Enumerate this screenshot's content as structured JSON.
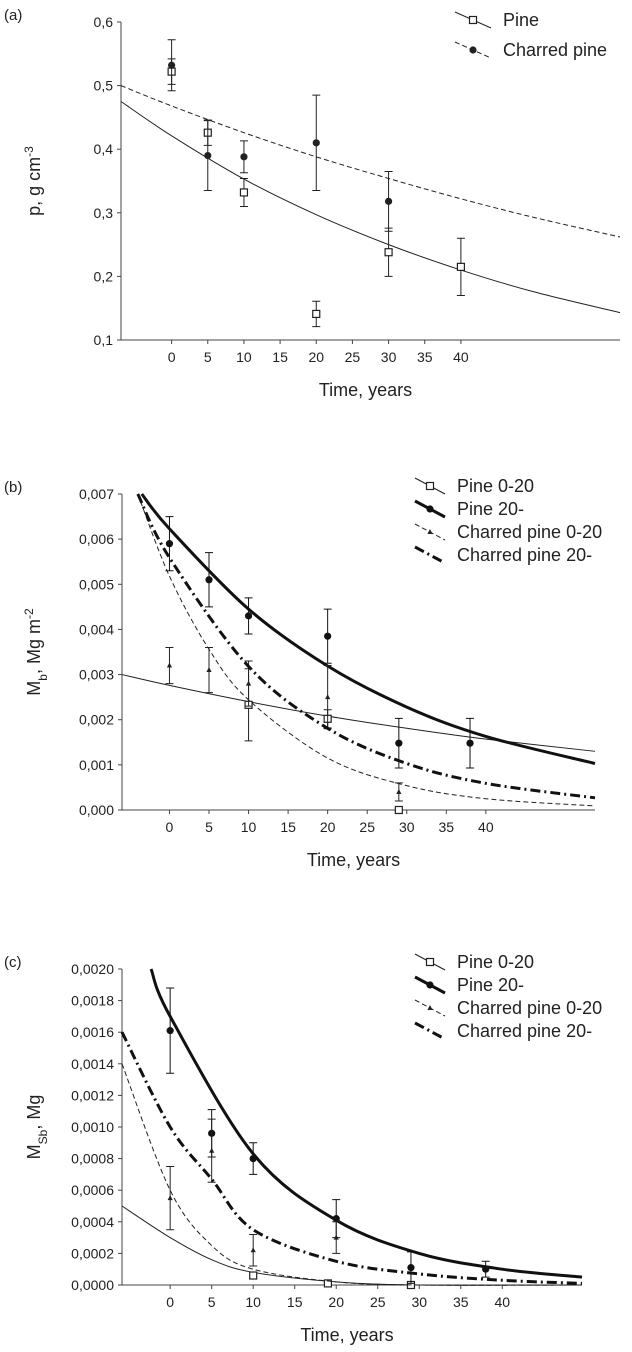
{
  "chart_data": [
    {
      "type": "scatter",
      "panel_label": "(a)",
      "xlabel": "Time, years",
      "ylabel_parts": [
        {
          "text": "p, g cm"
        },
        {
          "text": "-3",
          "sup": true
        }
      ],
      "xlim": [
        -7,
        62
      ],
      "xticks": [
        0,
        5,
        10,
        15,
        20,
        25,
        30,
        35,
        40
      ],
      "ylim": [
        0.1,
        0.6
      ],
      "yticks": [
        {
          "value": 0.1,
          "label": "0,1"
        },
        {
          "value": 0.2,
          "label": "0,2"
        },
        {
          "value": 0.3,
          "label": "0,3"
        },
        {
          "value": 0.4,
          "label": "0,4"
        },
        {
          "value": 0.5,
          "label": "0,5"
        },
        {
          "value": 0.6,
          "label": "0,6"
        }
      ],
      "series": [
        {
          "name": "Pine",
          "color": "#222222",
          "marker": "square",
          "dash": "solid",
          "line_width": 1,
          "x": [
            0,
            5,
            10,
            20,
            30,
            40
          ],
          "values": [
            0.522,
            0.426,
            0.332,
            0.141,
            0.238,
            0.215
          ],
          "errors": [
            0.02,
            0.02,
            0.022,
            0.02,
            0.038,
            0.045
          ],
          "fit": {
            "x": [
              -7,
              0,
              10,
              20,
              30,
              40,
              50,
              62
            ],
            "values": [
              0.475,
              0.421,
              0.353,
              0.297,
              0.25,
              0.21,
              0.176,
              0.143
            ]
          }
        },
        {
          "name": "Charred pine",
          "color": "#222222",
          "marker": "circle",
          "dash": "dashed",
          "line_width": 1,
          "x": [
            0,
            5,
            10,
            20,
            30
          ],
          "values": [
            0.532,
            0.39,
            0.388,
            0.41,
            0.318
          ],
          "errors": [
            0.04,
            0.055,
            0.025,
            0.075,
            0.047
          ],
          "fit": {
            "x": [
              -7,
              0,
              10,
              20,
              30,
              40,
              50,
              62
            ],
            "values": [
              0.5,
              0.468,
              0.426,
              0.388,
              0.354,
              0.322,
              0.293,
              0.262
            ]
          }
        }
      ]
    },
    {
      "type": "scatter",
      "panel_label": "(b)",
      "xlabel": "Time, years",
      "ylabel_parts": [
        {
          "text": "M"
        },
        {
          "text": "b",
          "sub": true
        },
        {
          "text": ", Mg m"
        },
        {
          "text": "-2",
          "sup": true
        }
      ],
      "xlim": [
        -6,
        53.8
      ],
      "xticks": [
        0,
        5,
        10,
        15,
        20,
        25,
        30,
        35,
        40
      ],
      "ylim": [
        0,
        0.007
      ],
      "yticks": [
        {
          "value": 0,
          "label": "0,000"
        },
        {
          "value": 0.001,
          "label": "0,001"
        },
        {
          "value": 0.002,
          "label": "0,002"
        },
        {
          "value": 0.003,
          "label": "0,003"
        },
        {
          "value": 0.004,
          "label": "0,004"
        },
        {
          "value": 0.005,
          "label": "0,005"
        },
        {
          "value": 0.006,
          "label": "0,006"
        },
        {
          "value": 0.007,
          "label": "0,007"
        }
      ],
      "series": [
        {
          "name": "Pine 0-20",
          "color": "#222222",
          "marker": "square",
          "dash": "solid",
          "line_width": 1,
          "x": [
            10,
            20,
            29
          ],
          "values": [
            0.00233,
            0.00202,
            0
          ],
          "errors": [
            0.0008,
            0.0002,
            0
          ],
          "fit": {
            "x": [
              -6,
              0,
              10,
              20,
              30,
              40,
              53.8
            ],
            "values": [
              0.003,
              0.00276,
              0.0024,
              0.00208,
              0.00181,
              0.00157,
              0.0013
            ]
          }
        },
        {
          "name": "Pine 20-",
          "color": "#111111",
          "marker": "circle",
          "dash": "solid",
          "line_width": 3,
          "x": [
            0,
            5,
            10,
            20,
            29,
            38
          ],
          "values": [
            0.0059,
            0.0051,
            0.0043,
            0.00385,
            0.00148,
            0.00148
          ],
          "errors": [
            0.0006,
            0.0006,
            0.0004,
            0.0006,
            0.00055,
            0.00055
          ],
          "fit": {
            "x": [
              -3.5,
              0,
              10,
              20,
              30,
              40,
              53.8
            ],
            "values": [
              0.007,
              0.00623,
              0.00445,
              0.00319,
              0.00228,
              0.00163,
              0.00103
            ]
          }
        },
        {
          "name": "Charred pine 0-20",
          "color": "#222222",
          "marker": "triangle",
          "dash": "dashed",
          "line_width": 1,
          "x": [
            0,
            5,
            10,
            20,
            29
          ],
          "values": [
            0.0032,
            0.0031,
            0.0028,
            0.0025,
            0.0004
          ],
          "errors": [
            0.0004,
            0.0005,
            0.0005,
            0.0007,
            0.0002
          ],
          "fit": {
            "x": [
              -4,
              0,
              5,
              10,
              20,
              30,
              40,
              53.8
            ],
            "values": [
              0.007,
              0.00518,
              0.00356,
              0.00244,
              0.00115,
              0.00054,
              0.00025,
              9e-05
            ]
          }
        },
        {
          "name": "Charred pine 20-",
          "color": "#111111",
          "marker": "none",
          "dash": "dashdot",
          "line_width": 3,
          "x": [],
          "values": [],
          "errors": [],
          "fit": {
            "x": [
              -4,
              0,
              10,
              20,
              30,
              40,
              53.8
            ],
            "values": [
              0.007,
              0.00559,
              0.00318,
              0.00181,
              0.00103,
              0.00059,
              0.00027
            ]
          }
        }
      ]
    },
    {
      "type": "scatter",
      "panel_label": "(c)",
      "xlabel": "Time, years",
      "ylabel_parts": [
        {
          "text": "M"
        },
        {
          "text": "Sb",
          "sub": true
        },
        {
          "text": ", Mg"
        }
      ],
      "xlim": [
        -5.8,
        49.6
      ],
      "xticks": [
        0,
        5,
        10,
        15,
        20,
        25,
        30,
        35,
        40
      ],
      "ylim": [
        0,
        0.002
      ],
      "yticks": [
        {
          "value": 0,
          "label": "0,0000"
        },
        {
          "value": 0.0002,
          "label": "0,0002"
        },
        {
          "value": 0.0004,
          "label": "0,0004"
        },
        {
          "value": 0.0006,
          "label": "0,0006"
        },
        {
          "value": 0.0008,
          "label": "0,0008"
        },
        {
          "value": 0.001,
          "label": "0,0010"
        },
        {
          "value": 0.0012,
          "label": "0,0012"
        },
        {
          "value": 0.0014,
          "label": "0,0014"
        },
        {
          "value": 0.0016,
          "label": "0,0016"
        },
        {
          "value": 0.0018,
          "label": "0,0018"
        },
        {
          "value": 0.002,
          "label": "0,0020"
        }
      ],
      "series": [
        {
          "name": "Pine 0-20",
          "color": "#222222",
          "marker": "square",
          "dash": "solid",
          "line_width": 1,
          "x": [
            10,
            19,
            29
          ],
          "values": [
            6e-05,
            1e-05,
            0
          ],
          "errors": [
            2e-05,
            1e-05,
            0
          ],
          "fit": {
            "x": [
              -5.8,
              0,
              5,
              10,
              20,
              30,
              49.6
            ],
            "values": [
              0.0005,
              0.0003,
              0.00016,
              8e-05,
              2e-05,
              0,
              0
            ]
          }
        },
        {
          "name": "Pine 20-",
          "color": "#111111",
          "marker": "circle",
          "dash": "solid",
          "line_width": 3,
          "x": [
            0,
            5,
            10,
            20,
            29,
            38
          ],
          "values": [
            0.00161,
            0.00096,
            0.0008,
            0.00042,
            0.00011,
            0.0001
          ],
          "errors": [
            0.00027,
            0.00015,
            0.0001,
            0.00012,
            0.0001,
            5e-05
          ],
          "fit": {
            "x": [
              -2.3,
              0,
              10,
              20,
              30,
              40,
              49.6
            ],
            "values": [
              0.002,
              0.0017,
              0.00083,
              0.00041,
              0.0002,
              0.0001,
              5e-05
            ]
          }
        },
        {
          "name": "Charred pine 0-20",
          "color": "#222222",
          "marker": "triangle",
          "dash": "dashed",
          "line_width": 1,
          "x": [
            0,
            5,
            10,
            20
          ],
          "values": [
            0.00055,
            0.00085,
            0.00022,
            0.0003
          ],
          "errors": [
            0.0002,
            0.0002,
            0.0001,
            0.0001
          ],
          "fit": {
            "x": [
              -5.8,
              0,
              5,
              10,
              20,
              30,
              49.6
            ],
            "values": [
              0.0014,
              0.0006,
              0.00025,
              0.0001,
              2e-05,
              0,
              0
            ]
          }
        },
        {
          "name": "Charred pine 20-",
          "color": "#111111",
          "marker": "none",
          "dash": "dashdot",
          "line_width": 3,
          "x": [],
          "values": [],
          "errors": [],
          "fit": {
            "x": [
              -5.8,
              0,
              5,
              10,
              20,
              30,
              40,
              49.6
            ],
            "values": [
              0.0016,
              0.001,
              0.00067,
              0.00035,
              0.00015,
              7e-05,
              3e-05,
              1e-05
            ]
          }
        }
      ]
    }
  ]
}
